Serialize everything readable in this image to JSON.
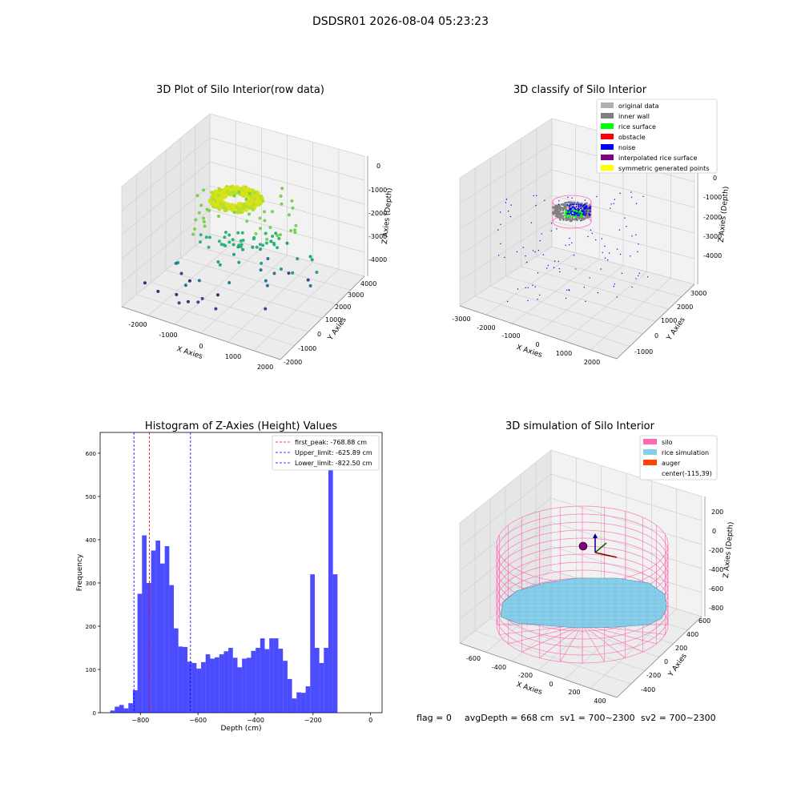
{
  "suptitle": "DSDSR01 2026-08-04 05:23:23",
  "colors": {
    "hist_bar": "#0000ff",
    "first_peak": "#ff0000",
    "limits": "#0000ff",
    "silo": "#ff69b4",
    "rice": "#87ceeb",
    "auger": "#ff4500",
    "noise": "#0000ff",
    "rice_surface": "#00ff00",
    "inner_wall": "#808080",
    "original": "#b0b0b0",
    "obstacle": "#ff0000",
    "interpolated": "#800080",
    "symmetric": "#ffff00"
  },
  "chart_data": [
    {
      "type": "scatter",
      "projection": "3d",
      "title": "3D Plot of Silo Interior(row data)",
      "xlabel": "X Axies",
      "ylabel": "Y Axies",
      "zlabel": "Z Axies (Depth)",
      "xticks": [
        "-2000",
        "-1000",
        "0",
        "1000",
        "2000"
      ],
      "yticks": [
        "-2000",
        "-1000",
        "0",
        "1000",
        "2000",
        "3000",
        "4000"
      ],
      "zticks": [
        "0",
        "-1000",
        "-2000",
        "-3000",
        "-4000"
      ],
      "colormap": "viridis",
      "grid": true
    },
    {
      "type": "scatter",
      "projection": "3d",
      "title": "3D classify of Silo Interior",
      "xlabel": "X Axies",
      "ylabel": "Y Axies",
      "zlabel": "Z Axies (Depth)",
      "xticks": [
        "-3000",
        "-2000",
        "-1000",
        "0",
        "1000",
        "2000"
      ],
      "yticks": [
        "-1000",
        "0",
        "1000",
        "2000",
        "3000"
      ],
      "zticks": [
        "0",
        "-1000",
        "-2000",
        "-3000",
        "-4000"
      ],
      "legend": [
        "original data",
        "inner wall",
        "rice surface",
        "obstacle",
        "noise",
        "interpolated rice surface",
        "symmetric generated points"
      ],
      "legend_colors": [
        "#b0b0b0",
        "#808080",
        "#00ff00",
        "#ff0000",
        "#0000ff",
        "#800080",
        "#ffff00"
      ],
      "legend_position": "top-right",
      "grid": true
    },
    {
      "type": "bar",
      "title": "Histogram of Z-Axies (Height) Values",
      "xlabel": "Depth (cm)",
      "ylabel": "Frequency",
      "xlim": [
        -940,
        40
      ],
      "ylim": [
        0,
        648
      ],
      "xticks": [
        -800,
        -600,
        -400,
        -200,
        0
      ],
      "xtick_labels": [
        "−800",
        "−600",
        "−400",
        "−200",
        "0"
      ],
      "yticks": [
        0,
        100,
        200,
        300,
        400,
        500,
        600
      ],
      "bin_start": -905,
      "bin_width": 15.8,
      "values": [
        5,
        14,
        18,
        10,
        22,
        52,
        275,
        410,
        300,
        375,
        398,
        345,
        385,
        295,
        195,
        153,
        152,
        118,
        115,
        102,
        117,
        135,
        125,
        128,
        135,
        142,
        150,
        127,
        105,
        125,
        127,
        143,
        150,
        172,
        147,
        172,
        172,
        148,
        120,
        78,
        33,
        47,
        46,
        61,
        320,
        150,
        115,
        150,
        615,
        320
      ],
      "vlines": [
        {
          "x": -768.88,
          "label": "first_peak: -768.88 cm",
          "color": "#ff0000"
        },
        {
          "x": -625.89,
          "label": "Upper_limit: -625.89 cm",
          "color": "#0000ff"
        },
        {
          "x": -822.5,
          "label": "Lower_limit: -822.50 cm",
          "color": "#0000ff"
        }
      ],
      "legend_position": "top-right"
    },
    {
      "type": "surface",
      "projection": "3d",
      "title": "3D simulation of Silo Interior",
      "xlabel": "X Axies",
      "ylabel": "Y Axies",
      "zlabel": "Z Axies (Depth)",
      "xticks": [
        "-600",
        "-400",
        "-200",
        "0",
        "200",
        "400"
      ],
      "yticks": [
        "-400",
        "-200",
        "0",
        "200",
        "400",
        "600"
      ],
      "zticks": [
        "200",
        "0",
        "-200",
        "-400",
        "-600",
        "-800"
      ],
      "legend": [
        "silo",
        "rice simulation",
        "auger",
        "center(-115,39)"
      ],
      "legend_colors": [
        "#ff69b4",
        "#87ceeb",
        "#ff4500",
        ""
      ],
      "legend_position": "top-right",
      "grid": true
    }
  ],
  "status": {
    "flag": "flag = 0",
    "avg_depth": "avgDepth = 668 cm",
    "sv1": "sv1 = 700~2300",
    "sv2": "sv2 = 700~2300"
  }
}
